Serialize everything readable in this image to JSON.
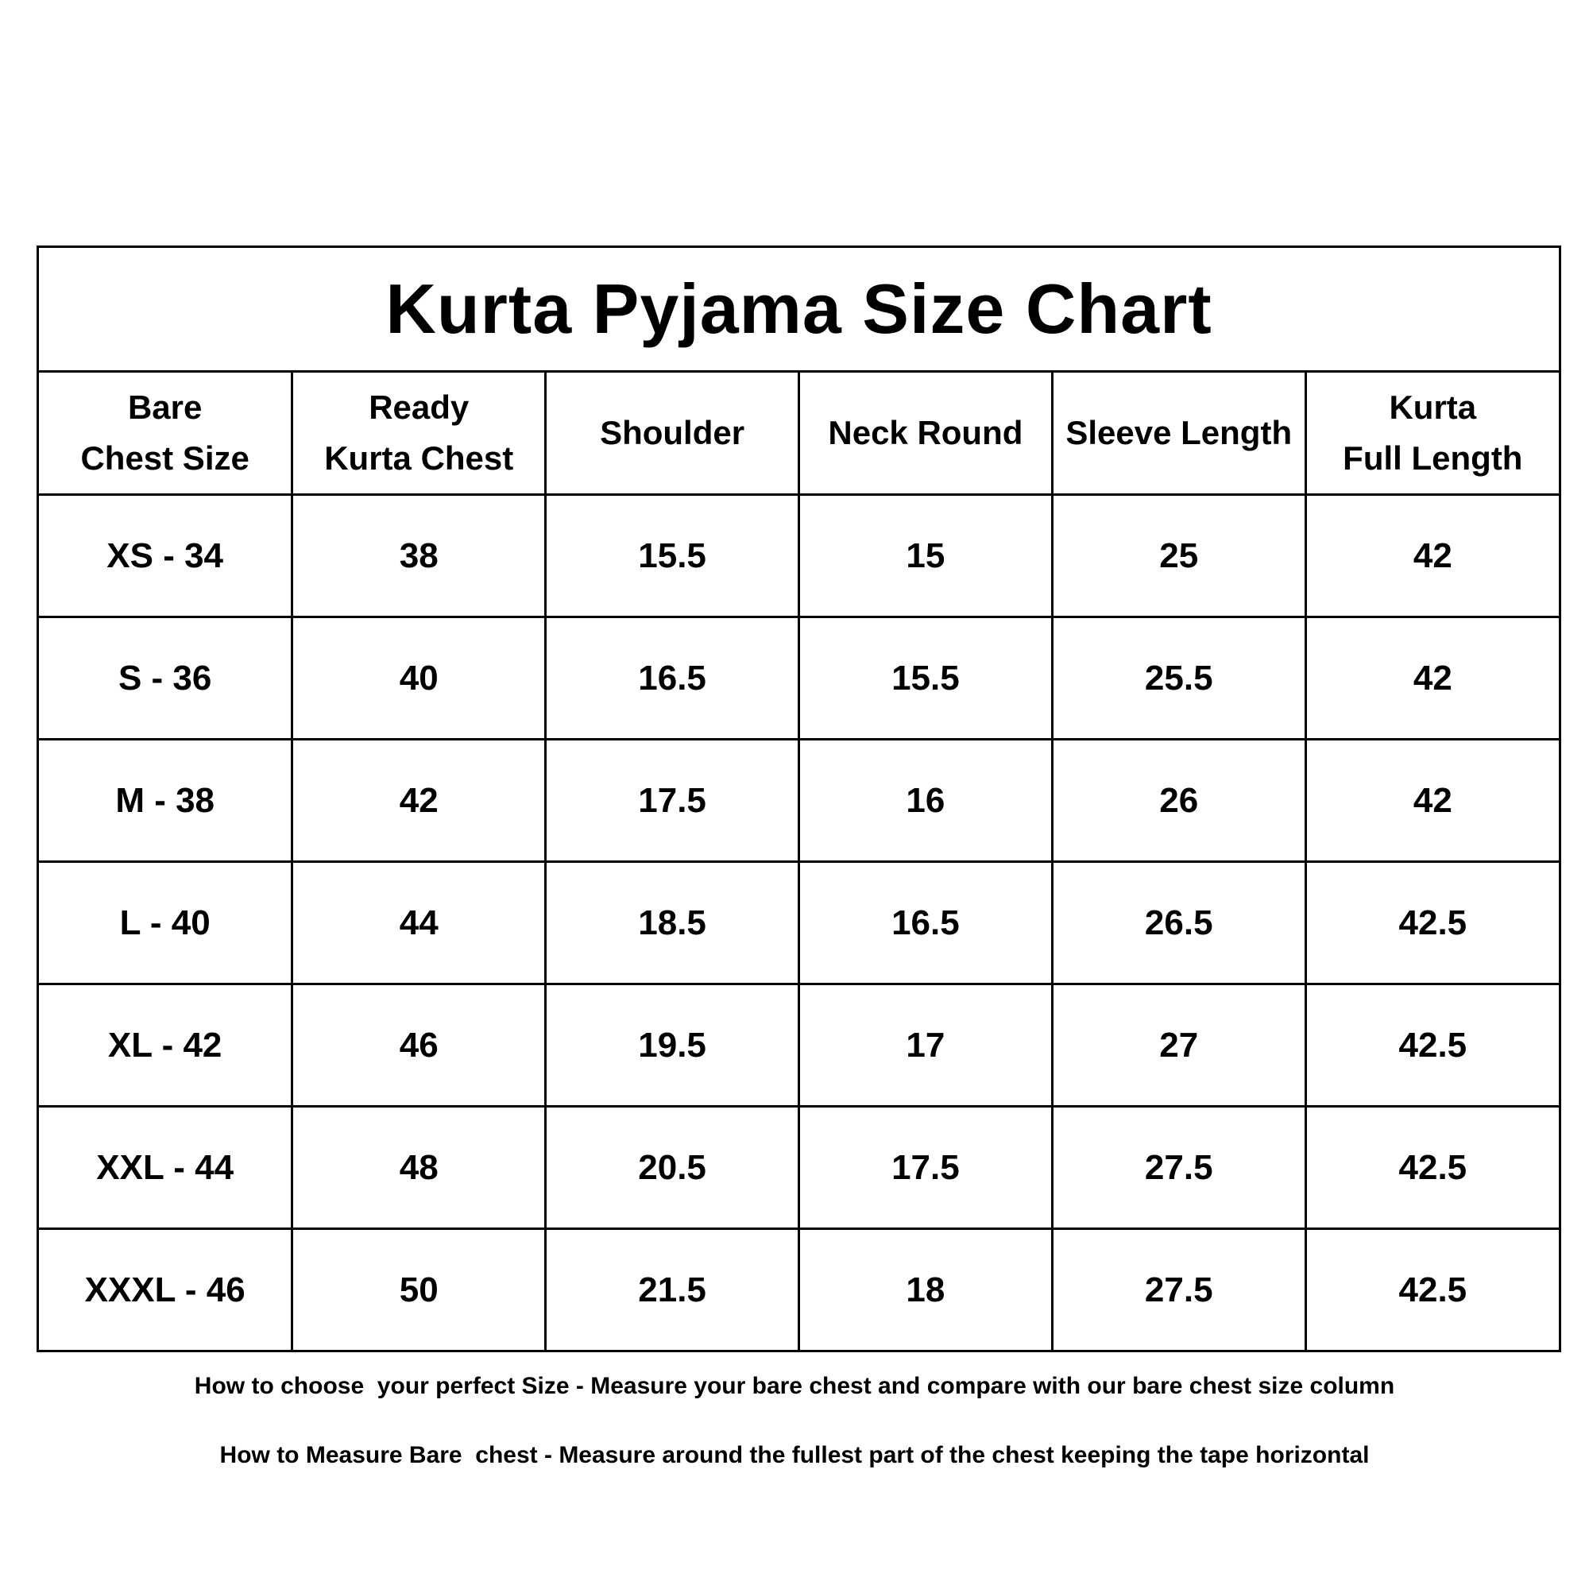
{
  "title": "Kurta Pyjama Size Chart",
  "columns": [
    {
      "line1": "Bare",
      "line2": "Chest Size"
    },
    {
      "line1": "Ready",
      "line2": "Kurta Chest"
    },
    {
      "line1": "Shoulder",
      "line2": ""
    },
    {
      "line1": "Neck Round",
      "line2": ""
    },
    {
      "line1": "Sleeve Length",
      "line2": ""
    },
    {
      "line1": "Kurta",
      "line2": "Full Length"
    }
  ],
  "rows": [
    [
      "XS - 34",
      "38",
      "15.5",
      "15",
      "25",
      "42"
    ],
    [
      "S - 36",
      "40",
      "16.5",
      "15.5",
      "25.5",
      "42"
    ],
    [
      "M - 38",
      "42",
      "17.5",
      "16",
      "26",
      "42"
    ],
    [
      "L - 40",
      "44",
      "18.5",
      "16.5",
      "26.5",
      "42.5"
    ],
    [
      "XL - 42",
      "46",
      "19.5",
      "17",
      "27",
      "42.5"
    ],
    [
      "XXL - 44",
      "48",
      "20.5",
      "17.5",
      "27.5",
      "42.5"
    ],
    [
      "XXXL - 46",
      "50",
      "21.5",
      "18",
      "27.5",
      "42.5"
    ]
  ],
  "footer": {
    "line1": "How to choose  your perfect Size - Measure your bare chest and compare with our bare chest size column",
    "line2": "How to Measure Bare  chest - Measure around the fullest part of the chest keeping the tape horizontal"
  }
}
